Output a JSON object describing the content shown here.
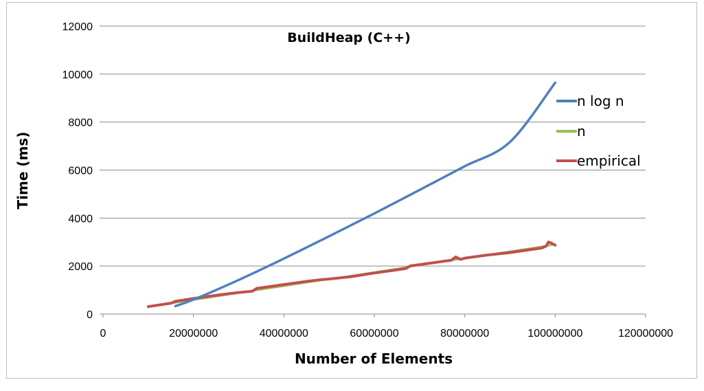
{
  "chart_data": {
    "type": "line",
    "title": "BuildHeap (C++)",
    "xlabel": "Number of Elements",
    "ylabel": "Time (ms)",
    "xlim": [
      0,
      120000000
    ],
    "ylim": [
      0,
      12000
    ],
    "x_ticks": [
      0,
      20000000,
      40000000,
      60000000,
      80000000,
      100000000,
      120000000
    ],
    "y_ticks": [
      0,
      2000,
      4000,
      6000,
      8000,
      10000,
      12000
    ],
    "x_tick_labels": [
      "0",
      "20000000",
      "40000000",
      "60000000",
      "80000000",
      "100000000",
      "120000000"
    ],
    "y_tick_labels": [
      "0",
      "2000",
      "4000",
      "6000",
      "8000",
      "10000",
      "12000"
    ],
    "grid": "horizontal",
    "legend": "right",
    "series": [
      {
        "name": "n log n",
        "color": "#4f81bd",
        "x": [
          16000000,
          20000000,
          30000000,
          40000000,
          50000000,
          60000000,
          70000000,
          80000000,
          90000000,
          100000000
        ],
        "y": [
          330,
          600,
          1420,
          2310,
          3240,
          4190,
          5170,
          6160,
          7170,
          9640
        ]
      },
      {
        "name": "n",
        "color": "#9bbb59",
        "x": [
          10000000,
          100000000
        ],
        "y": [
          300,
          2900
        ]
      },
      {
        "name": "empirical",
        "color": "#c0504d",
        "x": [
          10000000,
          15000000,
          16000000,
          20000000,
          25000000,
          30000000,
          33000000,
          34000000,
          40000000,
          45000000,
          48000000,
          50000000,
          55000000,
          60000000,
          65000000,
          67000000,
          68000000,
          70000000,
          75000000,
          77000000,
          78000000,
          79000000,
          80000000,
          85000000,
          90000000,
          95000000,
          97000000,
          98000000,
          98500000,
          99000000,
          100000000
        ],
        "y": [
          310,
          450,
          530,
          650,
          780,
          900,
          950,
          1070,
          1230,
          1360,
          1430,
          1460,
          1560,
          1710,
          1840,
          1900,
          2010,
          2060,
          2190,
          2240,
          2380,
          2280,
          2330,
          2460,
          2560,
          2700,
          2750,
          2830,
          3000,
          2970,
          2870
        ]
      }
    ]
  }
}
